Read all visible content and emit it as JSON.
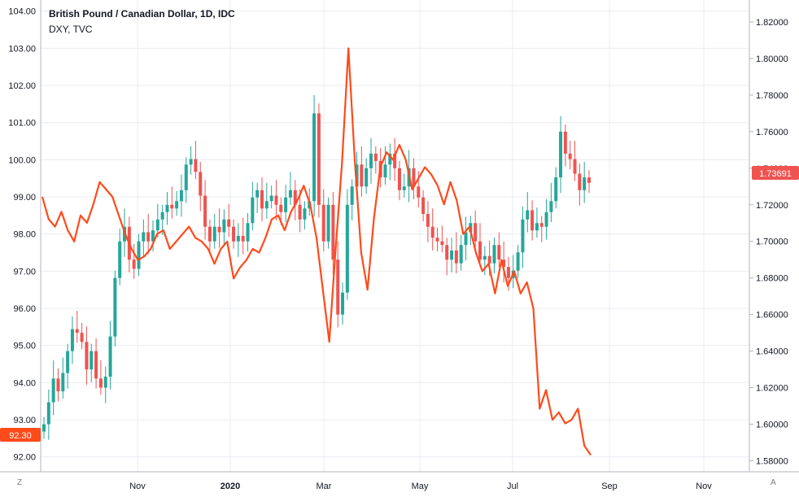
{
  "legend": {
    "title": "British Pound / Canadian Dollar, 1D, IDC",
    "subtitle": "DXY, TVC"
  },
  "buttons": {
    "left": "Z",
    "right": "A"
  },
  "colors": {
    "up": "#26a69a",
    "down": "#ef5350",
    "dxy_line": "#ff4a1a",
    "price_badge": "#ef5350",
    "left_badge": "#ff4a1a",
    "grid": "#e9ecf0",
    "axis": "#b2b5be"
  },
  "chart_data": {
    "type": "line",
    "title": "British Pound / Canadian Dollar, 1D, IDC",
    "x_ticks": [
      "Nov",
      "2020",
      "Mar",
      "May",
      "Jul",
      "Sep",
      "Nov"
    ],
    "left_axis": {
      "series": "DXY, TVC",
      "range": [
        91.6,
        104.3
      ],
      "ticks": [
        "104.00",
        "103.00",
        "102.00",
        "101.00",
        "100.00",
        "99.00",
        "98.00",
        "97.00",
        "96.00",
        "95.00",
        "94.00",
        "93.00",
        "92.00"
      ],
      "badge": "92.30"
    },
    "right_axis": {
      "series": "British Pound / Canadian Dollar",
      "range": [
        1.574,
        1.832
      ],
      "ticks": [
        "1.82000",
        "1.80000",
        "1.78000",
        "1.76000",
        "1.74000",
        "1.72000",
        "1.70000",
        "1.68000",
        "1.66000",
        "1.64000",
        "1.62000",
        "1.60000",
        "1.58000"
      ],
      "badge": "1.73691"
    },
    "series": [
      {
        "name": "British Pound / Canadian Dollar",
        "kind": "candlestick",
        "axis": "right",
        "approx_close": [
          1.6,
          1.612,
          1.625,
          1.618,
          1.628,
          1.64,
          1.652,
          1.65,
          1.645,
          1.63,
          1.64,
          1.625,
          1.62,
          1.626,
          1.648,
          1.68,
          1.7,
          1.708,
          1.69,
          1.685,
          1.7,
          1.705,
          1.7,
          1.706,
          1.712,
          1.716,
          1.72,
          1.718,
          1.722,
          1.728,
          1.742,
          1.745,
          1.738,
          1.725,
          1.708,
          1.7,
          1.708,
          1.705,
          1.712,
          1.708,
          1.7,
          1.703,
          1.7,
          1.71,
          1.724,
          1.728,
          1.718,
          1.722,
          1.725,
          1.72,
          1.716,
          1.724,
          1.728,
          1.72,
          1.712,
          1.718,
          1.722,
          1.77,
          1.72,
          1.7,
          1.72,
          1.69,
          1.66,
          1.672,
          1.72,
          1.73,
          1.742,
          1.73,
          1.74,
          1.748,
          1.744,
          1.735,
          1.742,
          1.748,
          1.74,
          1.728,
          1.73,
          1.74,
          1.73,
          1.724,
          1.715,
          1.708,
          1.702,
          1.7,
          1.698,
          1.69,
          1.695,
          1.688,
          1.698,
          1.705,
          1.71,
          1.7,
          1.69,
          1.692,
          1.688,
          1.698,
          1.69,
          1.686,
          1.68,
          1.684,
          1.694,
          1.712,
          1.717,
          1.706,
          1.71,
          1.708,
          1.716,
          1.722,
          1.735,
          1.76,
          1.748,
          1.745,
          1.737,
          1.728,
          1.735,
          1.732
        ]
      },
      {
        "name": "DXY, TVC",
        "kind": "line",
        "axis": "left",
        "approx_values": [
          99.0,
          98.4,
          98.2,
          98.6,
          98.1,
          97.8,
          98.5,
          98.3,
          98.8,
          99.4,
          99.2,
          99.0,
          98.5,
          98.0,
          97.6,
          97.3,
          97.4,
          97.6,
          98.0,
          98.1,
          97.6,
          97.8,
          98.0,
          98.2,
          97.9,
          97.8,
          97.6,
          97.2,
          97.6,
          97.8,
          96.8,
          97.1,
          97.3,
          97.6,
          97.5,
          97.9,
          98.4,
          98.5,
          98.1,
          98.6,
          98.9,
          99.3,
          98.8,
          97.9,
          96.5,
          95.1,
          97.6,
          99.9,
          103.0,
          100.0,
          97.5,
          96.5,
          98.4,
          99.8,
          100.2,
          100.0,
          100.4,
          100.0,
          99.2,
          99.5,
          99.8,
          99.6,
          99.3,
          98.8,
          99.4,
          98.9,
          98.0,
          98.2,
          97.5,
          97.0,
          97.2,
          96.4,
          97.3,
          96.6,
          97.0,
          96.4,
          96.7,
          96.0,
          93.3,
          93.8,
          93.0,
          93.2,
          92.9,
          93.0,
          93.3,
          92.3,
          92.05
        ],
        "last_value": 92.3
      }
    ]
  }
}
